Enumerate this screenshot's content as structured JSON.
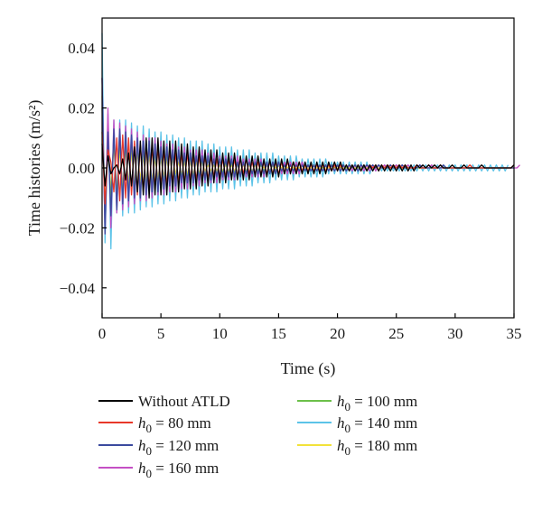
{
  "chart_data": {
    "type": "line",
    "title": "",
    "xlabel": "Time (s)",
    "ylabel": "Time histories (m/s²)",
    "xlim": [
      0,
      35
    ],
    "ylim": [
      -0.05,
      0.05
    ],
    "xticks": [
      0,
      5,
      10,
      15,
      20,
      25,
      30,
      35
    ],
    "yticks": [
      -0.04,
      -0.02,
      0.0,
      0.02,
      0.04
    ],
    "xtick_labels": [
      "0",
      "5",
      "10",
      "15",
      "20",
      "25",
      "30",
      "35"
    ],
    "ytick_labels": [
      "−0.04",
      "−0.02",
      "0.00",
      "0.02",
      "0.04"
    ],
    "grid": false,
    "legend_position": "below-plot",
    "x_step": 0.25,
    "series": [
      {
        "name": "Without ATLD",
        "color": "#000000",
        "legend_parts": [
          "Without ATLD"
        ],
        "values": [
          0.008,
          -0.006,
          0.004,
          -0.002,
          0.0,
          0.001,
          -0.002,
          0.003,
          -0.004,
          0.005,
          -0.006,
          0.007,
          -0.008,
          0.009,
          -0.009,
          0.01,
          -0.01,
          0.01,
          -0.009,
          0.01,
          -0.009,
          0.009,
          -0.009,
          0.009,
          -0.008,
          0.009,
          -0.008,
          0.008,
          -0.007,
          0.008,
          -0.007,
          0.007,
          -0.007,
          0.007,
          -0.006,
          0.006,
          -0.006,
          0.006,
          -0.005,
          0.006,
          -0.005,
          0.005,
          -0.005,
          0.005,
          -0.004,
          0.005,
          -0.004,
          0.004,
          -0.004,
          0.004,
          -0.004,
          0.004,
          -0.003,
          0.004,
          -0.003,
          0.003,
          -0.003,
          0.003,
          -0.003,
          0.003,
          -0.003,
          0.003,
          -0.002,
          0.003,
          -0.002,
          0.002,
          -0.002,
          0.002,
          -0.002,
          0.002,
          -0.002,
          0.002,
          -0.002,
          0.002,
          -0.002,
          0.002,
          -0.002,
          0.002,
          -0.001,
          0.002,
          -0.001,
          0.002,
          -0.001,
          0.001,
          -0.001,
          0.001,
          -0.001,
          0.001,
          -0.001,
          0.001,
          -0.001,
          0.001,
          -0.001,
          0.001,
          -0.001,
          0.001,
          -0.001,
          0.001,
          -0.001,
          0.001,
          -0.001,
          0.001,
          -0.001,
          0.001,
          -0.001,
          0.001,
          -0.001,
          0.001,
          0.0,
          0.001,
          0.0,
          0.001,
          0.0,
          0.001,
          0.0,
          0.001,
          0.0,
          0.0,
          0.0,
          0.001,
          0.0,
          0.0,
          0.0,
          0.001,
          0.0,
          0.0,
          0.0,
          0.0,
          0.0,
          0.001,
          0.0,
          0.0,
          0.0,
          0.0,
          0.0,
          0.0,
          0.0,
          0.0,
          0.0,
          0.0,
          0.001
        ]
      },
      {
        "name": "h0 = 80 mm",
        "color": "#e8382a",
        "legend_parts": [
          "h",
          "0",
          " = 80 mm"
        ],
        "values": [
          0.012,
          -0.012,
          0.006,
          0.002,
          -0.008,
          0.01,
          -0.011,
          0.011,
          -0.01,
          0.01,
          -0.009,
          0.009,
          -0.009,
          0.008,
          -0.008,
          0.008,
          -0.007,
          0.007,
          -0.007,
          0.007,
          -0.006,
          0.006,
          -0.006,
          0.006,
          -0.005,
          0.005,
          -0.005,
          0.005,
          -0.005,
          0.005,
          -0.004,
          0.004,
          -0.004,
          0.004,
          -0.004,
          0.004,
          -0.004,
          0.004,
          -0.003,
          0.003,
          -0.003,
          0.003,
          -0.003,
          0.003,
          -0.003,
          0.003,
          -0.003,
          0.003,
          -0.002,
          0.003,
          -0.002,
          0.002,
          -0.002,
          0.002,
          -0.002,
          0.002,
          -0.002,
          0.002,
          -0.002,
          0.002,
          -0.002,
          0.002,
          -0.002,
          0.002,
          -0.001,
          0.002,
          -0.001,
          0.002,
          -0.001,
          0.001,
          -0.001,
          0.001,
          -0.001,
          0.001,
          -0.001,
          0.001,
          -0.001,
          0.001,
          -0.001,
          0.001,
          -0.001,
          0.001,
          -0.001,
          0.001,
          -0.001,
          0.001,
          -0.001,
          0.001,
          -0.001,
          0.001,
          -0.001,
          0.001,
          0.0,
          0.001,
          -0.001,
          0.001,
          0.0,
          0.001,
          0.0,
          0.001,
          0.0,
          0.001,
          0.0,
          0.001,
          0.0,
          0.0,
          0.0,
          0.001,
          0.0,
          0.0,
          0.0,
          0.001,
          0.0,
          0.0,
          0.0,
          0.001,
          0.0,
          0.0,
          0.0,
          0.0,
          0.0,
          0.0,
          0.0,
          0.0,
          0.0,
          0.001,
          0.0,
          0.0,
          0.0,
          0.0,
          0.0,
          0.0,
          0.0,
          0.0,
          0.0,
          0.0,
          0.0,
          0.0,
          0.0,
          0.0,
          0.001
        ]
      },
      {
        "name": "h0 = 120 mm",
        "color": "#3b4a9e",
        "legend_parts": [
          "h",
          "0",
          " = 120 mm"
        ],
        "values": [
          0.03,
          -0.022,
          0.012,
          -0.016,
          0.013,
          -0.014,
          0.013,
          -0.012,
          0.012,
          -0.011,
          0.011,
          -0.01,
          0.01,
          -0.01,
          0.009,
          -0.009,
          0.009,
          -0.008,
          0.008,
          -0.008,
          0.007,
          -0.007,
          0.007,
          -0.006,
          0.006,
          -0.006,
          0.006,
          -0.005,
          0.005,
          -0.005,
          0.005,
          -0.005,
          0.004,
          -0.004,
          0.004,
          -0.004,
          0.004,
          -0.004,
          0.003,
          -0.003,
          0.003,
          -0.003,
          0.003,
          -0.003,
          0.003,
          -0.003,
          0.002,
          -0.003,
          0.002,
          -0.002,
          0.002,
          -0.002,
          0.002,
          -0.002,
          0.002,
          -0.002,
          0.002,
          -0.002,
          0.002,
          -0.002,
          0.002,
          -0.001,
          0.001,
          -0.001,
          0.001,
          -0.001,
          0.001,
          -0.001,
          0.001,
          -0.001,
          0.001,
          -0.001,
          0.001,
          -0.001,
          0.001,
          -0.001,
          0.001,
          -0.001,
          0.001,
          -0.001,
          0.001,
          -0.001,
          0.001,
          -0.001,
          0.001,
          0.0,
          0.001,
          -0.001,
          0.001,
          0.0,
          0.001,
          0.0,
          0.001,
          0.0,
          0.001,
          0.0,
          0.0,
          0.0,
          0.001,
          0.0,
          0.0,
          0.0,
          0.001,
          0.0,
          0.0,
          0.0,
          0.0,
          0.0,
          0.001,
          0.0,
          0.0,
          0.0,
          0.0,
          0.0,
          0.0,
          0.0,
          0.001,
          0.0,
          0.0,
          0.0,
          0.0,
          0.0,
          0.0,
          0.0,
          0.0,
          0.0,
          0.0,
          0.0,
          0.0,
          0.0,
          0.0,
          0.0,
          0.0,
          0.0,
          0.0,
          0.0,
          0.0,
          0.0,
          0.0,
          0.0,
          0.0
        ]
      },
      {
        "name": "h0 = 160 mm",
        "color": "#c44fc4",
        "legend_parts": [
          "h",
          "0",
          " = 160 mm"
        ],
        "values": [
          0.03,
          -0.022,
          0.02,
          -0.02,
          0.016,
          -0.015,
          0.015,
          -0.014,
          0.014,
          -0.013,
          0.013,
          -0.012,
          0.012,
          -0.011,
          0.011,
          -0.011,
          0.01,
          -0.01,
          0.01,
          -0.009,
          0.009,
          -0.009,
          0.008,
          -0.008,
          0.008,
          -0.008,
          0.007,
          -0.007,
          0.007,
          -0.007,
          0.006,
          -0.006,
          0.006,
          -0.006,
          0.006,
          -0.005,
          0.005,
          -0.005,
          0.005,
          -0.005,
          0.004,
          -0.004,
          0.004,
          -0.004,
          0.004,
          -0.004,
          0.004,
          -0.003,
          0.003,
          -0.003,
          0.003,
          -0.003,
          0.003,
          -0.003,
          0.003,
          -0.003,
          0.002,
          -0.002,
          0.002,
          -0.002,
          0.002,
          -0.002,
          0.002,
          -0.002,
          0.002,
          -0.002,
          0.002,
          -0.002,
          0.002,
          -0.001,
          0.001,
          -0.001,
          0.001,
          -0.001,
          0.001,
          -0.001,
          0.001,
          -0.001,
          0.001,
          -0.001,
          0.001,
          -0.001,
          0.001,
          -0.001,
          0.001,
          -0.001,
          0.001,
          -0.001,
          0.001,
          -0.001,
          0.001,
          -0.001,
          0.001,
          -0.001,
          0.001,
          0.0,
          0.001,
          0.0,
          0.001,
          0.0,
          0.001,
          0.0,
          0.001,
          0.0,
          0.001,
          0.0,
          0.0,
          0.0,
          0.001,
          0.0,
          0.0,
          0.0,
          0.001,
          0.0,
          0.0,
          0.0,
          0.0,
          0.0,
          0.0,
          0.0,
          0.0,
          0.0,
          0.0,
          0.0,
          0.0,
          0.0,
          0.0,
          0.0,
          0.0,
          0.0,
          0.0,
          0.0,
          0.0,
          0.0,
          0.0,
          0.0,
          0.0,
          0.0,
          0.0,
          0.0,
          0.0,
          0.0,
          0.001
        ]
      },
      {
        "name": "h0 = 100 mm",
        "color": "#6cc04a",
        "legend_parts": [
          "h",
          "0",
          " = 100 mm"
        ],
        "values": [
          0.02,
          -0.016,
          0.012,
          -0.011,
          0.011,
          -0.01,
          0.01,
          -0.01,
          0.009,
          -0.009,
          0.009,
          -0.008,
          0.008,
          -0.008,
          0.007,
          -0.007,
          0.007,
          -0.007,
          0.006,
          -0.006,
          0.006,
          -0.006,
          0.005,
          -0.005,
          0.005,
          -0.005,
          0.005,
          -0.004,
          0.004,
          -0.004,
          0.004,
          -0.004,
          0.004,
          -0.003,
          0.003,
          -0.003,
          0.003,
          -0.003,
          0.003,
          -0.003,
          0.003,
          -0.002,
          0.002,
          -0.002,
          0.002,
          -0.002,
          0.002,
          -0.002,
          0.002,
          -0.002,
          0.002,
          -0.002,
          0.002,
          -0.001,
          0.001,
          -0.001,
          0.001,
          -0.001,
          0.001,
          -0.001,
          0.001,
          -0.001,
          0.001,
          -0.001,
          0.001,
          -0.001,
          0.001,
          -0.001,
          0.001,
          -0.001,
          0.001,
          -0.001,
          0.001,
          -0.001,
          0.001,
          0.0,
          0.001,
          -0.001,
          0.001,
          0.0,
          0.001,
          0.0,
          0.001,
          0.0,
          0.001,
          0.0,
          0.001,
          0.0,
          0.0,
          0.0,
          0.001,
          0.0,
          0.0,
          0.0,
          0.001,
          0.0,
          0.0,
          0.0,
          0.0,
          0.0,
          0.001,
          0.0,
          0.0,
          0.0,
          0.0,
          0.0,
          0.0,
          0.0,
          0.0,
          0.0,
          0.0,
          0.0,
          0.0,
          0.0,
          0.0,
          0.0,
          0.0,
          0.0,
          0.0,
          0.0,
          0.0,
          0.0,
          0.0,
          0.0,
          0.0,
          0.0,
          0.0,
          0.0,
          0.0,
          0.0,
          0.0,
          0.0,
          0.0,
          0.0,
          0.0,
          0.0,
          0.0,
          0.0,
          0.0,
          0.0,
          0.0
        ]
      },
      {
        "name": "h0 = 140 mm",
        "color": "#5bc3e8",
        "legend_parts": [
          "h",
          "0",
          " = 140 mm"
        ],
        "values": [
          0.045,
          -0.025,
          0.018,
          -0.027,
          0.016,
          -0.015,
          0.016,
          -0.016,
          0.016,
          -0.015,
          0.015,
          -0.015,
          0.014,
          -0.014,
          0.014,
          -0.013,
          0.013,
          -0.013,
          0.012,
          -0.012,
          0.012,
          -0.012,
          0.011,
          -0.011,
          0.011,
          -0.011,
          0.01,
          -0.01,
          0.01,
          -0.01,
          0.009,
          -0.009,
          0.009,
          -0.009,
          0.009,
          -0.008,
          0.008,
          -0.008,
          0.008,
          -0.008,
          0.007,
          -0.007,
          0.007,
          -0.007,
          0.007,
          -0.007,
          0.006,
          -0.006,
          0.006,
          -0.006,
          0.006,
          -0.006,
          0.005,
          -0.005,
          0.005,
          -0.005,
          0.005,
          -0.005,
          0.005,
          -0.004,
          0.004,
          -0.004,
          0.004,
          -0.004,
          0.004,
          -0.004,
          0.004,
          -0.003,
          0.003,
          -0.003,
          0.003,
          -0.003,
          0.003,
          -0.003,
          0.003,
          -0.003,
          0.003,
          -0.002,
          0.002,
          -0.002,
          0.002,
          -0.002,
          0.002,
          -0.002,
          0.002,
          -0.002,
          0.002,
          -0.002,
          0.002,
          -0.002,
          0.002,
          -0.002,
          0.001,
          -0.001,
          0.001,
          -0.001,
          0.001,
          -0.001,
          0.001,
          -0.001,
          0.001,
          -0.001,
          0.001,
          -0.001,
          0.001,
          -0.001,
          0.001,
          -0.001,
          0.001,
          -0.001,
          0.001,
          -0.001,
          0.001,
          -0.001,
          0.001,
          -0.001,
          0.001,
          -0.001,
          0.001,
          -0.001,
          0.001,
          -0.001,
          0.001,
          -0.001,
          0.001,
          -0.001,
          0.001,
          -0.001,
          0.001,
          -0.001,
          0.001,
          -0.001,
          0.001,
          -0.001,
          0.001,
          -0.001,
          0.001,
          -0.001,
          0.001
        ]
      },
      {
        "name": "h0 = 180 mm",
        "color": "#f2e23a",
        "legend_parts": [
          "h",
          "0",
          " = 180 mm"
        ],
        "values": [
          0.024,
          -0.014,
          0.01,
          -0.008,
          0.007,
          -0.007,
          0.006,
          -0.006,
          0.006,
          -0.005,
          0.005,
          -0.005,
          0.005,
          -0.004,
          0.004,
          -0.004,
          0.004,
          -0.004,
          0.003,
          -0.003,
          0.003,
          -0.003,
          0.003,
          -0.003,
          0.003,
          -0.002,
          0.002,
          -0.002,
          0.002,
          -0.002,
          0.002,
          -0.002,
          0.002,
          -0.002,
          0.002,
          -0.001,
          0.001,
          -0.001,
          0.001,
          -0.001,
          0.001,
          -0.001,
          0.001,
          -0.001,
          0.001,
          -0.001,
          0.001,
          -0.001,
          0.001,
          -0.001,
          0.001,
          -0.001,
          0.001,
          -0.001,
          0.001,
          0.0,
          0.001,
          -0.001,
          0.001,
          0.0,
          0.001,
          0.0,
          0.001,
          0.0,
          0.001,
          0.0,
          0.0,
          0.0,
          0.001,
          0.0,
          0.0,
          0.0,
          0.001,
          0.0,
          0.0,
          0.0,
          0.0,
          0.0,
          0.001,
          0.0,
          0.0,
          0.0,
          0.0,
          0.0,
          0.0,
          0.0,
          0.0,
          0.0,
          0.0,
          0.0,
          0.0,
          0.0,
          0.0,
          0.0,
          0.0,
          0.0,
          0.0,
          0.0,
          0.0,
          0.0,
          0.0,
          0.0,
          0.0,
          0.0,
          0.0,
          0.0,
          0.0,
          0.0,
          0.0,
          0.0,
          0.0,
          0.0,
          0.0,
          0.0,
          0.0,
          0.0,
          0.0,
          0.0,
          0.0,
          0.0,
          0.0,
          0.0,
          0.0,
          0.0,
          0.0,
          0.0,
          0.0,
          0.0,
          0.0,
          0.0,
          0.0,
          0.0,
          0.0,
          0.0,
          0.0,
          0.0,
          0.0,
          0.0,
          0.0,
          0.0,
          0.0
        ]
      }
    ]
  }
}
